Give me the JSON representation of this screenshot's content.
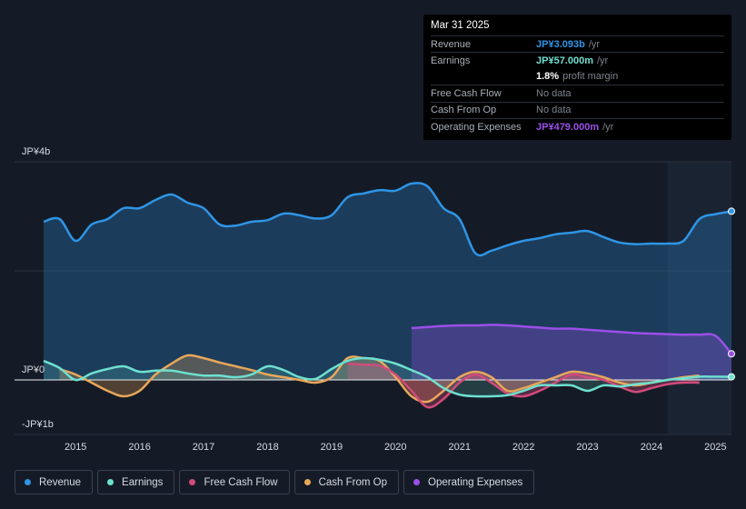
{
  "tooltip": {
    "date": "Mar 31 2025",
    "revenue_label": "Revenue",
    "revenue_value": "JP¥3.093b",
    "revenue_unit": "/yr",
    "earnings_label": "Earnings",
    "earnings_value": "JP¥57.000m",
    "earnings_unit": "/yr",
    "margin_value": "1.8%",
    "margin_text": "profit margin",
    "fcf_label": "Free Cash Flow",
    "fcf_value": "No data",
    "cfo_label": "Cash From Op",
    "cfo_value": "No data",
    "opex_label": "Operating Expenses",
    "opex_value": "JP¥479.000m",
    "opex_unit": "/yr"
  },
  "legend": {
    "revenue": "Revenue",
    "earnings": "Earnings",
    "fcf": "Free Cash Flow",
    "cfo": "Cash From Op",
    "opex": "Operating Expenses"
  },
  "colors": {
    "revenue": "#2f95e6",
    "earnings": "#6ee0cf",
    "fcf": "#d14b7a",
    "cfo": "#e8a75a",
    "opex": "#9b4fe8"
  },
  "chart_data": {
    "type": "area",
    "unit": "JPY billions",
    "y_tick_labels": [
      "JP¥4b",
      "JP¥0",
      "-JP¥1b"
    ],
    "ylim": [
      -1,
      4
    ],
    "x_tick_labels": [
      "2015",
      "2016",
      "2017",
      "2018",
      "2019",
      "2020",
      "2021",
      "2022",
      "2023",
      "2024",
      "2025"
    ],
    "xlim": [
      2014.5,
      2025.25
    ],
    "forecast_shade_start": 2024.25,
    "series": [
      {
        "key": "revenue",
        "name": "Revenue",
        "points": [
          [
            2014.5,
            2.9
          ],
          [
            2014.75,
            2.95
          ],
          [
            2015.0,
            2.55
          ],
          [
            2015.25,
            2.85
          ],
          [
            2015.5,
            2.95
          ],
          [
            2015.75,
            3.15
          ],
          [
            2016.0,
            3.15
          ],
          [
            2016.25,
            3.3
          ],
          [
            2016.5,
            3.4
          ],
          [
            2016.75,
            3.25
          ],
          [
            2017.0,
            3.15
          ],
          [
            2017.25,
            2.85
          ],
          [
            2017.5,
            2.83
          ],
          [
            2017.75,
            2.9
          ],
          [
            2018.0,
            2.93
          ],
          [
            2018.25,
            3.05
          ],
          [
            2018.5,
            3.02
          ],
          [
            2018.75,
            2.96
          ],
          [
            2019.0,
            3.02
          ],
          [
            2019.25,
            3.35
          ],
          [
            2019.5,
            3.42
          ],
          [
            2019.75,
            3.48
          ],
          [
            2020.0,
            3.47
          ],
          [
            2020.25,
            3.6
          ],
          [
            2020.5,
            3.55
          ],
          [
            2020.75,
            3.15
          ],
          [
            2021.0,
            2.95
          ],
          [
            2021.25,
            2.32
          ],
          [
            2021.5,
            2.37
          ],
          [
            2021.75,
            2.47
          ],
          [
            2022.0,
            2.55
          ],
          [
            2022.25,
            2.6
          ],
          [
            2022.5,
            2.67
          ],
          [
            2022.75,
            2.7
          ],
          [
            2023.0,
            2.73
          ],
          [
            2023.25,
            2.62
          ],
          [
            2023.5,
            2.52
          ],
          [
            2023.75,
            2.49
          ],
          [
            2024.0,
            2.5
          ],
          [
            2024.25,
            2.5
          ],
          [
            2024.5,
            2.55
          ],
          [
            2024.75,
            2.95
          ],
          [
            2025.0,
            3.04
          ],
          [
            2025.25,
            3.093
          ]
        ]
      },
      {
        "key": "earnings",
        "name": "Earnings",
        "points": [
          [
            2014.5,
            0.35
          ],
          [
            2014.75,
            0.22
          ],
          [
            2015.0,
            0.0
          ],
          [
            2015.25,
            0.12
          ],
          [
            2015.5,
            0.2
          ],
          [
            2015.75,
            0.25
          ],
          [
            2016.0,
            0.15
          ],
          [
            2016.25,
            0.17
          ],
          [
            2016.5,
            0.17
          ],
          [
            2016.75,
            0.12
          ],
          [
            2017.0,
            0.08
          ],
          [
            2017.25,
            0.08
          ],
          [
            2017.5,
            0.05
          ],
          [
            2017.75,
            0.1
          ],
          [
            2018.0,
            0.25
          ],
          [
            2018.25,
            0.18
          ],
          [
            2018.5,
            0.05
          ],
          [
            2018.75,
            0.02
          ],
          [
            2019.0,
            0.2
          ],
          [
            2019.25,
            0.35
          ],
          [
            2019.5,
            0.4
          ],
          [
            2019.75,
            0.37
          ],
          [
            2020.0,
            0.3
          ],
          [
            2020.25,
            0.18
          ],
          [
            2020.5,
            0.05
          ],
          [
            2020.75,
            -0.15
          ],
          [
            2021.0,
            -0.27
          ],
          [
            2021.25,
            -0.3
          ],
          [
            2021.5,
            -0.3
          ],
          [
            2021.75,
            -0.28
          ],
          [
            2022.0,
            -0.2
          ],
          [
            2022.25,
            -0.1
          ],
          [
            2022.5,
            -0.1
          ],
          [
            2022.75,
            -0.1
          ],
          [
            2023.0,
            -0.2
          ],
          [
            2023.25,
            -0.1
          ],
          [
            2023.5,
            -0.12
          ],
          [
            2023.75,
            -0.08
          ],
          [
            2024.0,
            -0.05
          ],
          [
            2024.25,
            0.0
          ],
          [
            2024.5,
            0.03
          ],
          [
            2024.75,
            0.06
          ],
          [
            2025.0,
            0.06
          ],
          [
            2025.25,
            0.057
          ]
        ]
      },
      {
        "key": "fcf",
        "name": "Free Cash Flow",
        "points": [
          [
            2019.25,
            0.3
          ],
          [
            2019.5,
            0.28
          ],
          [
            2019.75,
            0.26
          ],
          [
            2020.0,
            0.1
          ],
          [
            2020.25,
            -0.2
          ],
          [
            2020.5,
            -0.5
          ],
          [
            2020.75,
            -0.35
          ],
          [
            2021.0,
            -0.05
          ],
          [
            2021.25,
            0.1
          ],
          [
            2021.5,
            -0.05
          ],
          [
            2021.75,
            -0.25
          ],
          [
            2022.0,
            -0.3
          ],
          [
            2022.25,
            -0.2
          ],
          [
            2022.5,
            -0.05
          ],
          [
            2022.75,
            0.1
          ],
          [
            2023.0,
            0.05
          ],
          [
            2023.25,
            0.0
          ],
          [
            2023.5,
            -0.12
          ],
          [
            2023.75,
            -0.22
          ],
          [
            2024.0,
            -0.15
          ],
          [
            2024.25,
            -0.08
          ],
          [
            2024.5,
            -0.05
          ],
          [
            2024.75,
            -0.05
          ]
        ]
      },
      {
        "key": "cfo",
        "name": "Cash From Op",
        "points": [
          [
            2014.75,
            0.2
          ],
          [
            2015.0,
            0.1
          ],
          [
            2015.25,
            -0.05
          ],
          [
            2015.5,
            -0.2
          ],
          [
            2015.75,
            -0.3
          ],
          [
            2016.0,
            -0.2
          ],
          [
            2016.25,
            0.1
          ],
          [
            2016.5,
            0.3
          ],
          [
            2016.75,
            0.45
          ],
          [
            2017.0,
            0.4
          ],
          [
            2017.25,
            0.32
          ],
          [
            2017.5,
            0.25
          ],
          [
            2017.75,
            0.18
          ],
          [
            2018.0,
            0.1
          ],
          [
            2018.25,
            0.05
          ],
          [
            2018.5,
            0.0
          ],
          [
            2018.75,
            -0.05
          ],
          [
            2019.0,
            0.05
          ],
          [
            2019.25,
            0.4
          ],
          [
            2019.5,
            0.4
          ],
          [
            2019.75,
            0.35
          ],
          [
            2020.0,
            0.05
          ],
          [
            2020.25,
            -0.3
          ],
          [
            2020.5,
            -0.4
          ],
          [
            2020.75,
            -0.2
          ],
          [
            2021.0,
            0.05
          ],
          [
            2021.25,
            0.15
          ],
          [
            2021.5,
            0.05
          ],
          [
            2021.75,
            -0.2
          ],
          [
            2022.0,
            -0.15
          ],
          [
            2022.25,
            -0.05
          ],
          [
            2022.5,
            0.05
          ],
          [
            2022.75,
            0.15
          ],
          [
            2023.0,
            0.12
          ],
          [
            2023.25,
            0.05
          ],
          [
            2023.5,
            -0.05
          ],
          [
            2023.75,
            -0.1
          ],
          [
            2024.0,
            -0.05
          ],
          [
            2024.25,
            0.0
          ],
          [
            2024.5,
            0.05
          ],
          [
            2024.75,
            0.08
          ]
        ]
      },
      {
        "key": "opex",
        "name": "Operating Expenses",
        "points": [
          [
            2020.25,
            0.95
          ],
          [
            2020.5,
            0.97
          ],
          [
            2020.75,
            0.99
          ],
          [
            2021.0,
            1.0
          ],
          [
            2021.25,
            1.0
          ],
          [
            2021.5,
            1.01
          ],
          [
            2021.75,
            1.0
          ],
          [
            2022.0,
            0.98
          ],
          [
            2022.25,
            0.96
          ],
          [
            2022.5,
            0.94
          ],
          [
            2022.75,
            0.94
          ],
          [
            2023.0,
            0.92
          ],
          [
            2023.25,
            0.9
          ],
          [
            2023.5,
            0.88
          ],
          [
            2023.75,
            0.86
          ],
          [
            2024.0,
            0.85
          ],
          [
            2024.25,
            0.84
          ],
          [
            2024.5,
            0.83
          ],
          [
            2024.75,
            0.83
          ],
          [
            2025.0,
            0.81
          ],
          [
            2025.25,
            0.479
          ]
        ]
      }
    ]
  }
}
